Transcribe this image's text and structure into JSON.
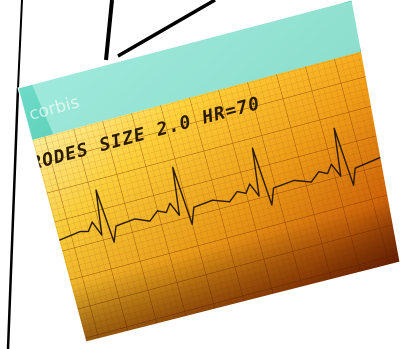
{
  "photo": {
    "strip_label": "RODES SIZE 2.0 HR=70",
    "watermark": "corbis"
  },
  "colors": {
    "paper_light": "#ffd23a",
    "paper_mid": "#f29a12",
    "paper_dark": "#a83a05",
    "ink": "#2a1a08",
    "frame": "#000000",
    "teal": "#1ec7a0",
    "violet": "#5a1a78"
  }
}
